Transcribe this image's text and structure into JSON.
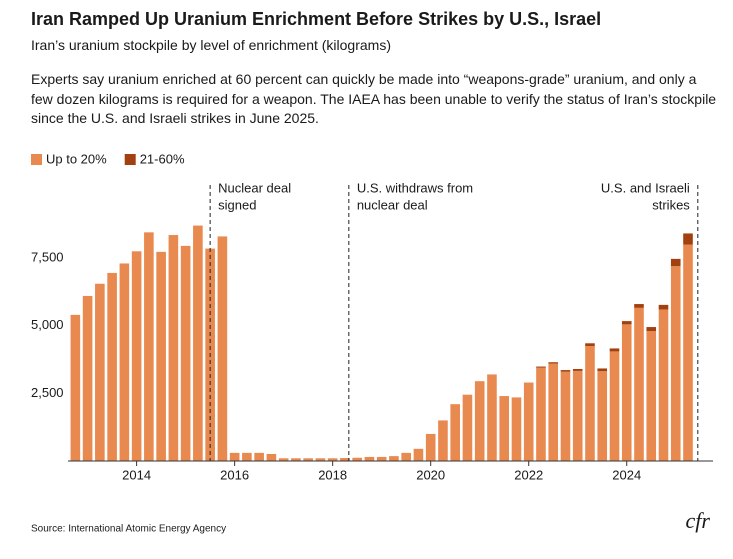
{
  "chart_data": {
    "type": "stacked_bar",
    "title": "Iran Ramped Up Uranium Enrichment Before Strikes by U.S., Israel",
    "subtitle": "Iran’s uranium stockpile by level of enrichment (kilograms)",
    "description": "Experts say uranium enriched at 60 percent can quickly be made into “weapons-grade” uranium, and only a few dozen kilograms is required for a weapon. The IAEA has been unable to verify the status of Iran’s stockpile since the U.S. and Israeli strikes in June 2025.",
    "source": "Source: International Atomic Energy Agency",
    "logo": "cfr",
    "x": [
      2012.75,
      2013,
      2013.25,
      2013.5,
      2013.75,
      2014,
      2014.25,
      2014.5,
      2014.75,
      2015,
      2015.25,
      2015.5,
      2015.75,
      2016,
      2016.25,
      2016.5,
      2016.75,
      2017,
      2017.25,
      2017.5,
      2017.75,
      2018,
      2018.25,
      2018.5,
      2018.75,
      2019,
      2019.25,
      2019.5,
      2019.75,
      2020,
      2020.25,
      2020.5,
      2020.75,
      2021,
      2021.25,
      2021.5,
      2021.75,
      2022,
      2022.25,
      2022.5,
      2022.75,
      2023,
      2023.25,
      2023.5,
      2023.75,
      2024,
      2024.25,
      2024.5,
      2024.75,
      2025,
      2025.25
    ],
    "series": [
      {
        "name": "Up to 20%",
        "color": "#e8894f",
        "values": [
          5400,
          6100,
          6550,
          6950,
          7300,
          7750,
          8450,
          7730,
          8350,
          7950,
          8700,
          7850,
          8300,
          300,
          300,
          300,
          260,
          100,
          100,
          100,
          100,
          100,
          110,
          120,
          150,
          150,
          180,
          300,
          450,
          1000,
          1500,
          2100,
          2450,
          2950,
          3200,
          2400,
          2350,
          2900,
          3450,
          3600,
          3300,
          3330,
          4250,
          3320,
          4050,
          5050,
          5660,
          4800,
          5600,
          7200,
          8000
        ]
      },
      {
        "name": "21-60%",
        "color": "#a3400f",
        "values": [
          0,
          0,
          0,
          0,
          0,
          0,
          0,
          0,
          0,
          0,
          0,
          0,
          0,
          0,
          0,
          0,
          0,
          0,
          0,
          0,
          0,
          0,
          0,
          0,
          0,
          0,
          0,
          0,
          0,
          0,
          0,
          0,
          0,
          0,
          0,
          0,
          0,
          0,
          40,
          50,
          60,
          70,
          100,
          100,
          110,
          120,
          140,
          150,
          170,
          270,
          410
        ]
      }
    ],
    "xlim": [
      2012.6,
      2025.76
    ],
    "xticks": [
      2014,
      2016,
      2018,
      2020,
      2022,
      2024
    ],
    "ylim": [
      0,
      10200
    ],
    "yticks": [
      {
        "value": 2500,
        "label": "2,500"
      },
      {
        "value": 5000,
        "label": "5,000"
      },
      {
        "value": 7500,
        "label": "7,500"
      }
    ],
    "legend": "top-left",
    "annotations": [
      {
        "x": 2015.5,
        "lines": [
          "Nuclear deal",
          "signed"
        ],
        "side": "right"
      },
      {
        "x": 2018.33,
        "lines": [
          "U.S. withdraws from",
          "nuclear deal"
        ],
        "side": "right"
      },
      {
        "x": 2025.45,
        "lines": [
          "U.S. and Israeli",
          "strikes"
        ],
        "side": "left"
      }
    ]
  }
}
